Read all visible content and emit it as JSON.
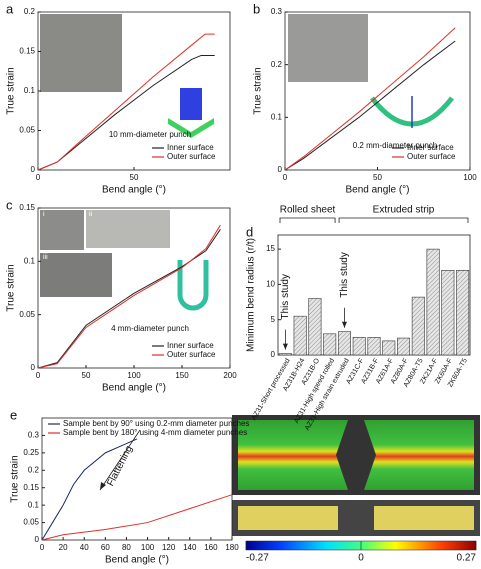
{
  "chart_data": [
    {
      "type": "line",
      "panel": "a",
      "x_label": "Bend angle (°)",
      "y_label": "True strain",
      "xlim": [
        0,
        100
      ],
      "xticks": [
        0,
        50
      ],
      "ylim": [
        0,
        0.2
      ],
      "yticks": [
        0,
        0.05,
        0.1,
        0.15,
        0.2
      ],
      "annotation": "10 mm-diameter punch",
      "legend": "lower right",
      "series": [
        {
          "name": "Inner surface",
          "color": "#222222",
          "x": [
            0,
            10,
            20,
            40,
            60,
            80,
            85,
            92
          ],
          "values": [
            0,
            0.01,
            0.03,
            0.07,
            0.107,
            0.14,
            0.145,
            0.145
          ]
        },
        {
          "name": "Outer surface",
          "color": "#e0302a",
          "x": [
            0,
            10,
            20,
            40,
            60,
            80,
            87,
            92
          ],
          "values": [
            0,
            0.01,
            0.032,
            0.075,
            0.118,
            0.158,
            0.172,
            0.172
          ]
        }
      ]
    },
    {
      "type": "line",
      "panel": "b",
      "x_label": "Bend angle (°)",
      "y_label": "True strain",
      "xlim": [
        0,
        100
      ],
      "xticks": [
        0,
        50,
        100
      ],
      "ylim": [
        0,
        0.3
      ],
      "yticks": [
        0,
        0.1,
        0.2,
        0.3
      ],
      "annotation": "0.2 mm-diameter punch",
      "legend": "lower right",
      "series": [
        {
          "name": "Inner surface",
          "color": "#222222",
          "x": [
            0,
            10,
            40,
            75,
            92
          ],
          "values": [
            0,
            0.022,
            0.1,
            0.2,
            0.245
          ]
        },
        {
          "name": "Outer surface",
          "color": "#e0302a",
          "x": [
            0,
            10,
            40,
            75,
            92
          ],
          "values": [
            0,
            0.025,
            0.11,
            0.215,
            0.27
          ]
        }
      ]
    },
    {
      "type": "line",
      "panel": "c",
      "x_label": "Bend angle (°)",
      "y_label": "True strain",
      "xlim": [
        0,
        200
      ],
      "xticks": [
        0,
        50,
        100,
        150,
        200
      ],
      "ylim": [
        0,
        0.15
      ],
      "yticks": [
        0,
        0.05,
        0.1,
        0.15
      ],
      "annotation": "4 mm-diameter punch",
      "legend": "lower right",
      "insets": [
        "i",
        "ii",
        "iii"
      ],
      "series": [
        {
          "name": "Inner surface",
          "color": "#222222",
          "x": [
            0,
            20,
            50,
            100,
            150,
            175,
            190
          ],
          "values": [
            0,
            0.005,
            0.04,
            0.07,
            0.095,
            0.11,
            0.13
          ]
        },
        {
          "name": "Outer surface",
          "color": "#e0302a",
          "x": [
            0,
            20,
            50,
            100,
            150,
            175,
            190
          ],
          "values": [
            0,
            0.004,
            0.038,
            0.068,
            0.094,
            0.112,
            0.134
          ]
        }
      ]
    },
    {
      "type": "bar",
      "panel": "d",
      "y_label": "Minimum bend radius (r/t)",
      "ylim": [
        0,
        17
      ],
      "yticks": [
        0,
        5,
        10,
        15
      ],
      "color": "#d8d8d8",
      "groups": [
        {
          "name": "Rolled sheet",
          "from": 0,
          "to": 3
        },
        {
          "name": "Extruded strip",
          "from": 4,
          "to": 12
        }
      ],
      "annotations": [
        {
          "text": "This study",
          "index": 0
        },
        {
          "text": "This study",
          "index": 4
        }
      ],
      "categories": [
        "AZ31-Short processed",
        "AZ31B-H24",
        "AZ31B-O",
        "AZ31-High speed rolled",
        "AZ31-High strain extruded",
        "AZ31C-F",
        "AZ31B-F",
        "AZ61A-F",
        "AZ80A-F",
        "AZ80A-T5",
        "ZK21A-F",
        "ZK60A-F",
        "ZK60A-T5"
      ],
      "values": [
        0.2,
        5.5,
        8,
        3,
        3.3,
        2.5,
        2.5,
        2,
        2.4,
        8.2,
        15,
        12,
        12
      ]
    },
    {
      "type": "line",
      "panel": "e",
      "x_label": "Bend angle (°)",
      "y_label": "True strain",
      "xlim": [
        0,
        180
      ],
      "xticks": [
        0,
        20,
        40,
        60,
        80,
        100,
        120,
        140,
        160,
        180
      ],
      "ylim": [
        0,
        0.35
      ],
      "yticks": [
        0,
        0.05,
        0.1,
        0.15,
        0.2,
        0.25,
        0.3
      ],
      "annotation": "Flattening",
      "legend": "upper left",
      "series": [
        {
          "name": "Sample bent by 90° using 0.2-mm diameter punches",
          "color": "#1a2a5a",
          "x": [
            0,
            10,
            20,
            30,
            40,
            60,
            90
          ],
          "values": [
            0,
            0.05,
            0.1,
            0.16,
            0.2,
            0.25,
            0.29
          ]
        },
        {
          "name": "Sample bent by 180° using 4-mm diameter punches",
          "color": "#e0302a",
          "x": [
            0,
            20,
            60,
            100,
            140,
            180
          ],
          "values": [
            0,
            0.015,
            0.03,
            0.05,
            0.09,
            0.13
          ]
        }
      ]
    }
  ],
  "colorbar": {
    "ticks": [
      -0.27,
      0,
      0.27
    ]
  }
}
